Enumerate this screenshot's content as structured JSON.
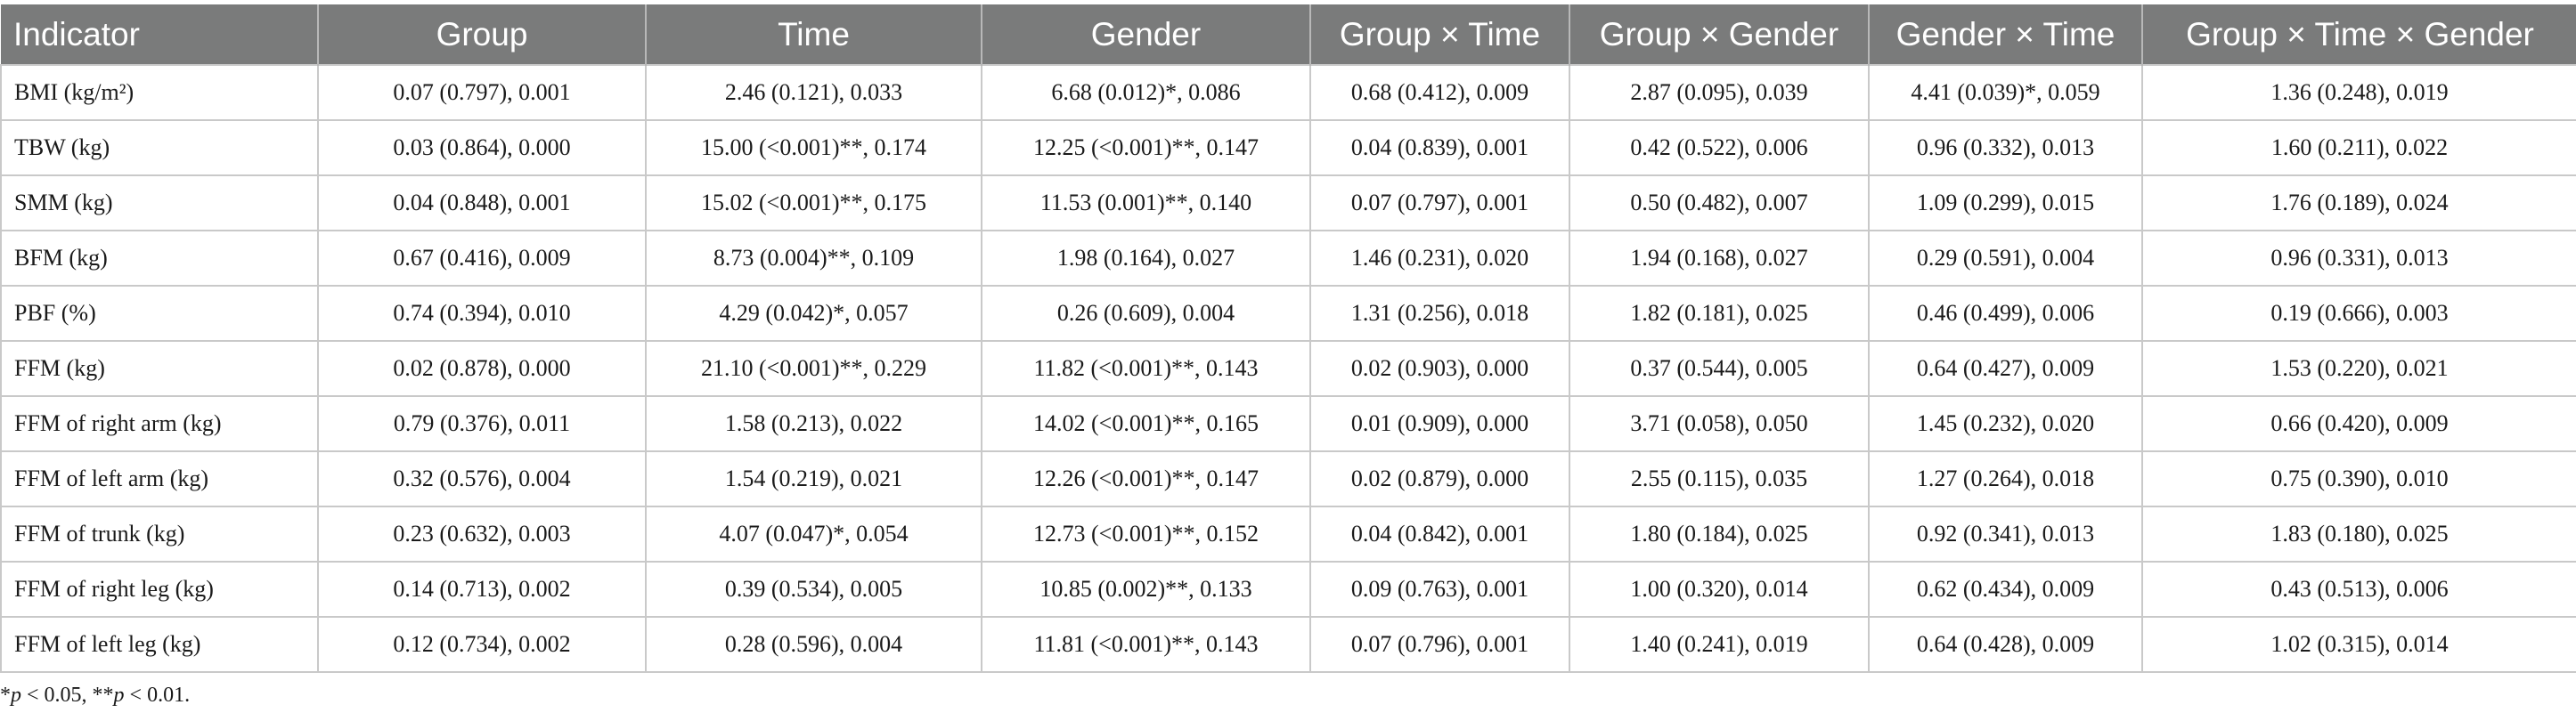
{
  "table": {
    "headers": [
      "Indicator",
      "Group",
      "Time",
      "Gender",
      "Group × Time",
      "Group × Gender",
      "Gender × Time",
      "Group × Time × Gender"
    ],
    "rows": [
      {
        "indicator": "BMI (kg/m²)",
        "cells": [
          "0.07 (0.797), 0.001",
          "2.46 (0.121), 0.033",
          "6.68 (0.012)*, 0.086",
          "0.68 (0.412), 0.009",
          "2.87 (0.095), 0.039",
          "4.41 (0.039)*, 0.059",
          "1.36 (0.248), 0.019"
        ]
      },
      {
        "indicator": "TBW (kg)",
        "cells": [
          "0.03 (0.864), 0.000",
          "15.00 (<0.001)**, 0.174",
          "12.25 (<0.001)**, 0.147",
          "0.04 (0.839), 0.001",
          "0.42 (0.522), 0.006",
          "0.96 (0.332), 0.013",
          "1.60 (0.211), 0.022"
        ]
      },
      {
        "indicator": "SMM (kg)",
        "cells": [
          "0.04 (0.848), 0.001",
          "15.02 (<0.001)**, 0.175",
          "11.53 (0.001)**, 0.140",
          "0.07 (0.797), 0.001",
          "0.50 (0.482), 0.007",
          "1.09 (0.299), 0.015",
          "1.76 (0.189), 0.024"
        ]
      },
      {
        "indicator": "BFM (kg)",
        "cells": [
          "0.67 (0.416), 0.009",
          "8.73 (0.004)**, 0.109",
          "1.98 (0.164), 0.027",
          "1.46 (0.231), 0.020",
          "1.94 (0.168), 0.027",
          "0.29 (0.591), 0.004",
          "0.96 (0.331), 0.013"
        ]
      },
      {
        "indicator": "PBF (%)",
        "cells": [
          "0.74 (0.394), 0.010",
          "4.29 (0.042)*, 0.057",
          "0.26 (0.609), 0.004",
          "1.31 (0.256), 0.018",
          "1.82 (0.181), 0.025",
          "0.46 (0.499), 0.006",
          "0.19 (0.666), 0.003"
        ]
      },
      {
        "indicator": "FFM (kg)",
        "cells": [
          "0.02 (0.878), 0.000",
          "21.10 (<0.001)**, 0.229",
          "11.82 (<0.001)**, 0.143",
          "0.02 (0.903), 0.000",
          "0.37 (0.544), 0.005",
          "0.64 (0.427), 0.009",
          "1.53 (0.220), 0.021"
        ]
      },
      {
        "indicator": "FFM of right arm (kg)",
        "cells": [
          "0.79 (0.376), 0.011",
          "1.58 (0.213), 0.022",
          "14.02 (<0.001)**, 0.165",
          "0.01 (0.909), 0.000",
          "3.71 (0.058), 0.050",
          "1.45 (0.232), 0.020",
          "0.66 (0.420), 0.009"
        ]
      },
      {
        "indicator": "FFM of left arm (kg)",
        "cells": [
          "0.32 (0.576), 0.004",
          "1.54 (0.219), 0.021",
          "12.26 (<0.001)**, 0.147",
          "0.02 (0.879), 0.000",
          "2.55 (0.115), 0.035",
          "1.27 (0.264), 0.018",
          "0.75 (0.390), 0.010"
        ]
      },
      {
        "indicator": "FFM of trunk (kg)",
        "cells": [
          "0.23 (0.632), 0.003",
          "4.07 (0.047)*, 0.054",
          "12.73 (<0.001)**, 0.152",
          "0.04 (0.842), 0.001",
          "1.80 (0.184), 0.025",
          "0.92 (0.341), 0.013",
          "1.83 (0.180), 0.025"
        ]
      },
      {
        "indicator": "FFM of right leg (kg)",
        "cells": [
          "0.14 (0.713), 0.002",
          "0.39 (0.534), 0.005",
          "10.85 (0.002)**, 0.133",
          "0.09 (0.763), 0.001",
          "1.00 (0.320), 0.014",
          "0.62 (0.434), 0.009",
          "0.43 (0.513), 0.006"
        ]
      },
      {
        "indicator": "FFM of left leg (kg)",
        "cells": [
          "0.12 (0.734), 0.002",
          "0.28 (0.596), 0.004",
          "11.81 (<0.001)**, 0.143",
          "0.07 (0.796), 0.001",
          "1.40 (0.241), 0.019",
          "0.64 (0.428), 0.009",
          "1.02 (0.315), 0.014"
        ]
      }
    ]
  },
  "footnote": {
    "part1_star": "*",
    "part1_p": "p",
    "part1_rest": " < 0.05, ",
    "part2_star": "**",
    "part2_p": "p",
    "part2_rest": " < 0.01."
  },
  "colors": {
    "header_bg": "#7a7b7b",
    "header_text": "#ffffff",
    "grid": "#c9c9c9"
  }
}
